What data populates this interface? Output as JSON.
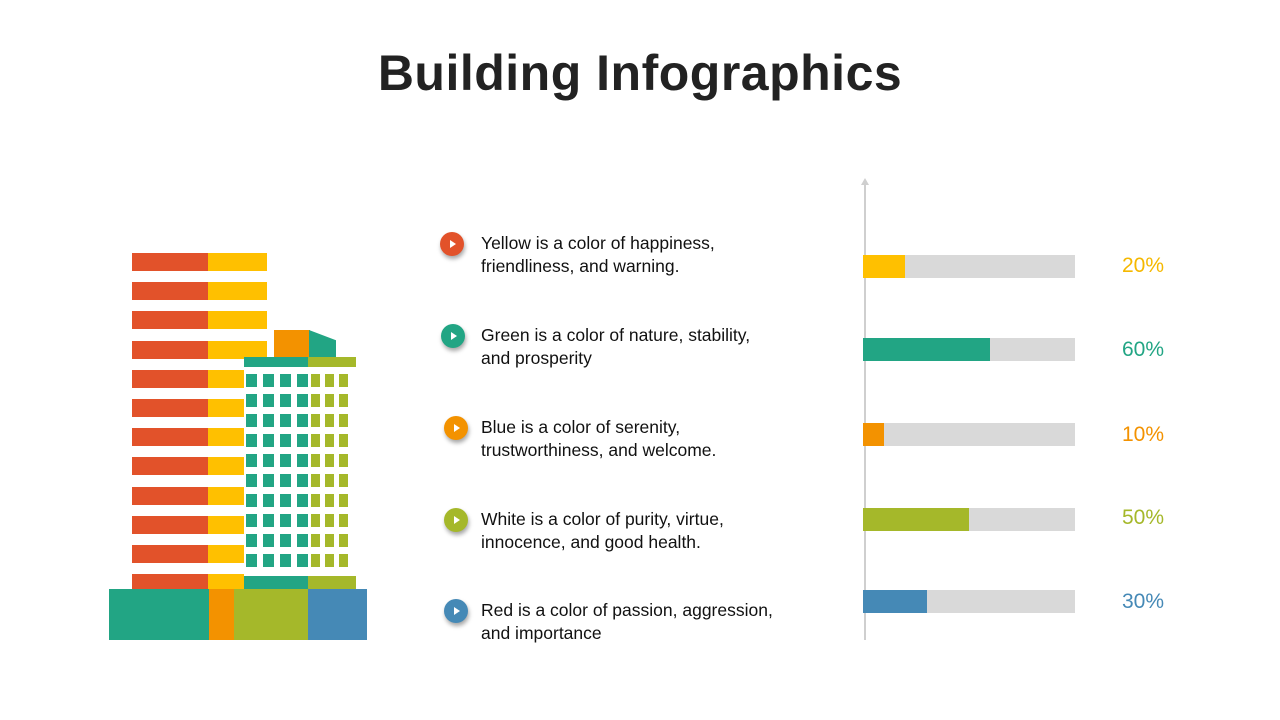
{
  "slide": {
    "title": "Building Infographics"
  },
  "items": [
    {
      "text_line1": "Yellow is a color of happiness,",
      "text_line2": "friendliness, and warning.",
      "dot_color": "#e2522a",
      "bar_color": "#ffc000",
      "percent_color": "#f5b800",
      "value": 0.2,
      "percent": "20%"
    },
    {
      "text_line1": "Green is a color of nature, stability,",
      "text_line2": "and prosperity",
      "dot_color": "#22a584",
      "bar_color": "#22a584",
      "percent_color": "#22a584",
      "value": 0.6,
      "percent": "60%"
    },
    {
      "text_line1": "Blue is a color of serenity,",
      "text_line2": "trustworthiness, and welcome.",
      "dot_color": "#f39200",
      "bar_color": "#f39200",
      "percent_color": "#f39200",
      "value": 0.1,
      "percent": "10%"
    },
    {
      "text_line1": "White is a color of purity, virtue,",
      "text_line2": "innocence, and good health.",
      "dot_color": "#a5b82a",
      "bar_color": "#a5b82a",
      "percent_color": "#a5b82a",
      "value": 0.5,
      "percent": "50%"
    },
    {
      "text_line1": "Red is a color of passion, aggression,",
      "text_line2": "and importance",
      "dot_color": "#4589b6",
      "bar_color": "#4589b6",
      "percent_color": "#4589b6",
      "value": 0.3,
      "percent": "30%"
    }
  ],
  "colors": {
    "red": "#e2522a",
    "yellow": "#ffc000",
    "green": "#22a584",
    "orange": "#f39200",
    "lime": "#a5b82a",
    "blue": "#4589b6",
    "track": "#d9d9d9"
  },
  "icons": {
    "item_marker": "play-icon",
    "illustration": "building-illustration"
  }
}
